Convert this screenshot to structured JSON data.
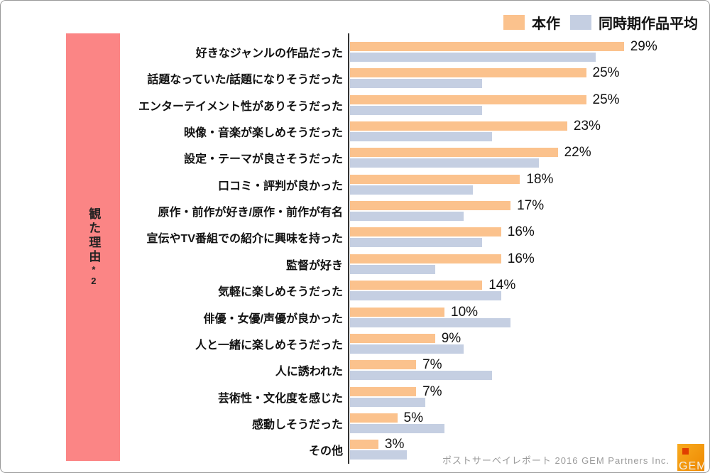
{
  "legend": {
    "items": [
      {
        "label": "本作",
        "color": "#FBC28D"
      },
      {
        "label": "同時期作品平均",
        "color": "#C5CFE2"
      }
    ]
  },
  "sidebar": {
    "label": "観た理由",
    "note": "*2",
    "color": "#FB8585"
  },
  "chart_data": {
    "type": "bar",
    "orientation": "horizontal",
    "unit": "%",
    "title": "",
    "xlabel": "",
    "ylabel": "観た理由*2",
    "xlim": [
      0,
      30
    ],
    "grid": false,
    "legend_position": "top-right",
    "value_labels_on_series": "本作",
    "categories": [
      "好きなジャンルの作品だった",
      "話題なっていた/話題になりそうだった",
      "エンターテイメント性がありそうだった",
      "映像・音楽が楽しめそうだった",
      "設定・テーマが良さそうだった",
      "口コミ・評判が良かった",
      "原作・前作が好き/原作・前作が有名",
      "宣伝やTV番組での紹介に興味を持った",
      "監督が好き",
      "気軽に楽しめそうだった",
      "俳優・女優/声優が良かった",
      "人と一緒に楽しめそうだった",
      "人に誘われた",
      "芸術性・文化度を感じた",
      "感動しそうだった",
      "その他"
    ],
    "series": [
      {
        "name": "本作",
        "color": "#FBC28D",
        "values": [
          29,
          25,
          25,
          23,
          22,
          18,
          17,
          16,
          16,
          14,
          10,
          9,
          7,
          7,
          5,
          3
        ],
        "labels": [
          "29%",
          "25%",
          "25%",
          "23%",
          "22%",
          "18%",
          "17%",
          "16%",
          "16%",
          "14%",
          "10%",
          "9%",
          "7%",
          "7%",
          "5%",
          "3%"
        ]
      },
      {
        "name": "同時期作品平均",
        "color": "#C5CFE2",
        "values": [
          26,
          14,
          14,
          15,
          20,
          13,
          12,
          14,
          9,
          16,
          17,
          12,
          15,
          8,
          10,
          6
        ]
      }
    ]
  },
  "footer": {
    "credit": "ポストサーベイレポート 2016  GEM Partners Inc.",
    "logo_text": "GEM"
  }
}
